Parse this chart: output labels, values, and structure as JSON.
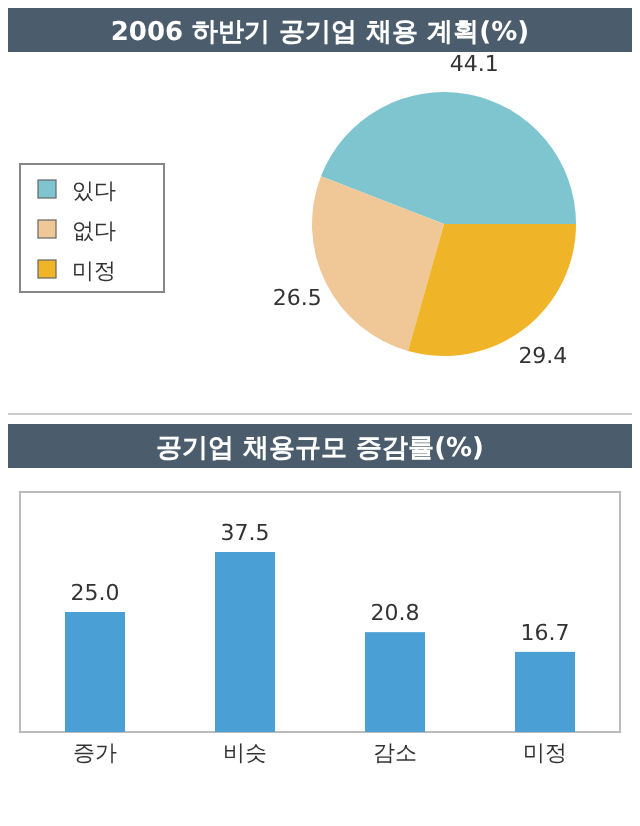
{
  "chart_data": [
    {
      "type": "pie",
      "title": "2006 하반기 공기업 채용 계획(%)",
      "categories": [
        "있다",
        "없다",
        "미정"
      ],
      "values": [
        44.1,
        26.5,
        29.4
      ],
      "colors": [
        "#7ec5d0",
        "#f0c898",
        "#f0b428"
      ],
      "data_labels": true,
      "legend": "left"
    },
    {
      "type": "bar",
      "title": "공기업 채용규모 증감률(%)",
      "categories": [
        "증가",
        "비슷",
        "감소",
        "미정"
      ],
      "values": [
        25.0,
        37.5,
        20.8,
        16.7
      ],
      "color": "#4aa0d5",
      "value_labels": [
        "25.0",
        "37.5",
        "20.8",
        "16.7"
      ]
    }
  ]
}
